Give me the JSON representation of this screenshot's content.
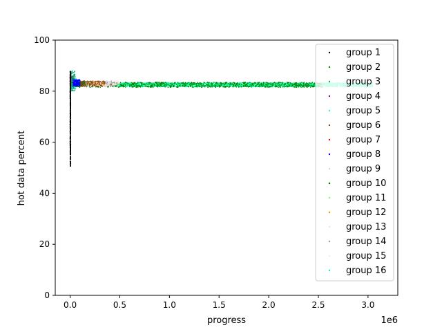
{
  "chart_data": {
    "type": "scatter",
    "title": "",
    "xlabel": "progress",
    "ylabel": "hot data percent",
    "x_offset_label": "1e6",
    "xlim": [
      -0.15,
      3.3
    ],
    "ylim": [
      0,
      100
    ],
    "x_ticks": [
      {
        "value": 0.0,
        "label": "0.0"
      },
      {
        "value": 0.5,
        "label": "0.5"
      },
      {
        "value": 1.0,
        "label": "1.0"
      },
      {
        "value": 1.5,
        "label": "1.5"
      },
      {
        "value": 2.0,
        "label": "2.0"
      },
      {
        "value": 2.5,
        "label": "2.5"
      },
      {
        "value": 3.0,
        "label": "3.0"
      }
    ],
    "y_ticks": [
      {
        "value": 0,
        "label": "0"
      },
      {
        "value": 20,
        "label": "20"
      },
      {
        "value": 40,
        "label": "40"
      },
      {
        "value": 60,
        "label": "60"
      },
      {
        "value": 80,
        "label": "80"
      },
      {
        "value": 100,
        "label": "100"
      }
    ],
    "legend_position": "top-right",
    "grid": false,
    "series": [
      {
        "name": "group 1",
        "color": "#000000",
        "x_range": [
          0,
          0.005
        ],
        "y_range": [
          50.5,
          88
        ],
        "count": 600,
        "x_max_detail": 0.01
      },
      {
        "name": "group 2",
        "color": "#008000",
        "x_range": [
          0.005,
          2.55
        ],
        "y_range": [
          81.5,
          83.5
        ],
        "count": 900
      },
      {
        "name": "group 3",
        "color": "#00a86b",
        "x_range": [
          0.0,
          0.05
        ],
        "y_range": [
          80,
          88
        ],
        "count": 120
      },
      {
        "name": "group 4",
        "color": "#800080",
        "x_range": [
          0.0,
          0.04
        ],
        "y_range": [
          82,
          86
        ],
        "count": 60
      },
      {
        "name": "group 5",
        "color": "#00ffff",
        "x_range": [
          0.01,
          0.06
        ],
        "y_range": [
          81,
          85
        ],
        "count": 60
      },
      {
        "name": "group 6",
        "color": "#8b4513",
        "x_range": [
          0.1,
          0.35
        ],
        "y_range": [
          81.8,
          84
        ],
        "count": 120
      },
      {
        "name": "group 7",
        "color": "#ff0000",
        "x_range": [
          0.02,
          0.08
        ],
        "y_range": [
          82,
          84.5
        ],
        "count": 60
      },
      {
        "name": "group 8",
        "color": "#0000ff",
        "x_range": [
          0.03,
          0.1
        ],
        "y_range": [
          82,
          84.5
        ],
        "count": 150
      },
      {
        "name": "group 9",
        "color": "#d3d3d3",
        "x_range": [
          0.15,
          0.4
        ],
        "y_range": [
          82,
          84
        ],
        "count": 60
      },
      {
        "name": "group 10",
        "color": "#006400",
        "x_range": [
          0.05,
          0.15
        ],
        "y_range": [
          82,
          84
        ],
        "count": 60
      },
      {
        "name": "group 11",
        "color": "#90ee90",
        "x_range": [
          0.05,
          0.2
        ],
        "y_range": [
          82,
          84
        ],
        "count": 60
      },
      {
        "name": "group 12",
        "color": "#ff8c00",
        "x_range": [
          0.15,
          0.35
        ],
        "y_range": [
          82,
          84
        ],
        "count": 90
      },
      {
        "name": "group 13",
        "color": "#e6e6fa",
        "x_range": [
          0.2,
          0.45
        ],
        "y_range": [
          82,
          84
        ],
        "count": 60
      },
      {
        "name": "group 14",
        "color": "#bc8f8f",
        "x_range": [
          0.25,
          0.45
        ],
        "y_range": [
          82,
          84
        ],
        "count": 90
      },
      {
        "name": "group 15",
        "color": "#ffe4e1",
        "x_range": [
          0.3,
          0.5
        ],
        "y_range": [
          82,
          84
        ],
        "count": 60
      },
      {
        "name": "group 16",
        "color": "#00fa9a",
        "x_range": [
          0.45,
          3.05
        ],
        "y_range": [
          81.7,
          83.3
        ],
        "count": 2500
      }
    ]
  }
}
